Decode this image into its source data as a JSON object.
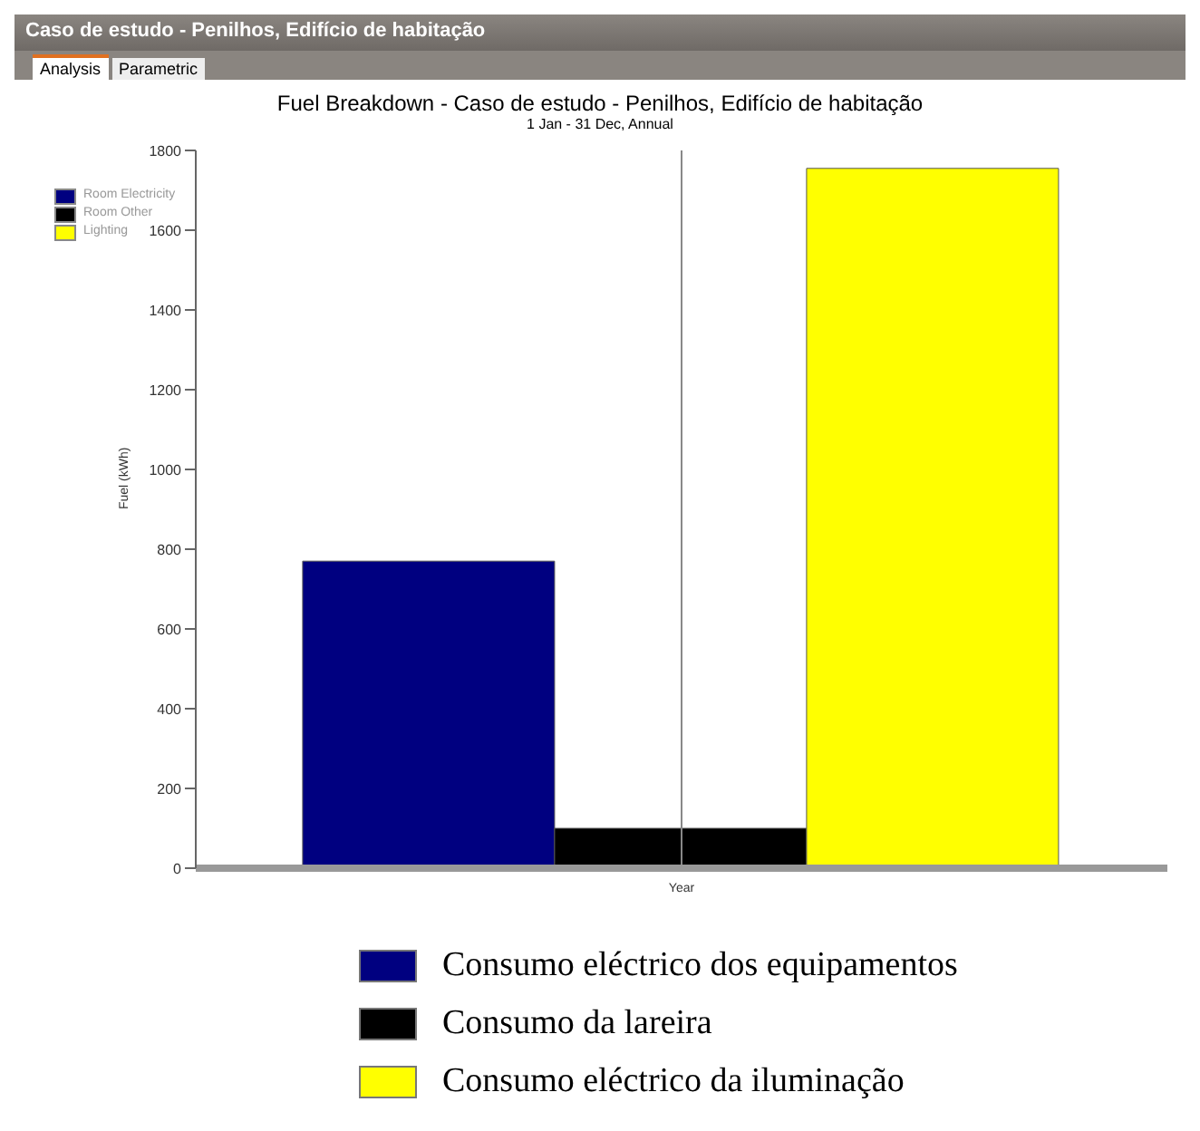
{
  "chart_data": {
    "type": "bar",
    "title": "Fuel Breakdown - Caso de estudo - Penilhos, Edifício de habitação",
    "subtitle": "1 Jan - 31 Dec, Annual",
    "ylabel": "Fuel (kWh)",
    "annotations": [
      "Caso de estudo - Penilhos, Edifício de habitação",
      "Analysis",
      "Parametric",
      "Room Electricity",
      "Room Other",
      "Lighting"
    ],
    "categories": [
      "Year"
    ],
    "series": [
      {
        "name": "Consumo eléctrico dos equipamentos",
        "color": "#000080",
        "values": [
          770
        ]
      },
      {
        "name": "Consumo da lareira",
        "color": "#000000",
        "values": [
          100
        ]
      },
      {
        "name": "Consumo eléctrico da iluminação",
        "color": "#ffff00",
        "values": [
          1755
        ]
      }
    ],
    "ylim": [
      0,
      1800
    ],
    "yticks": [
      0,
      200,
      400,
      600,
      800,
      1000,
      1200,
      1400,
      1600,
      1800
    ],
    "ref_lines": [
      {
        "axis": "x",
        "value": "Year",
        "color": "#888888"
      }
    ],
    "legend": "bottom"
  }
}
